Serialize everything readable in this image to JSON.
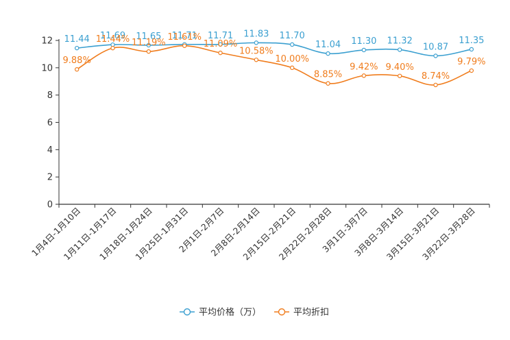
{
  "chart_data": {
    "type": "line",
    "title": "",
    "xlabel": "",
    "ylabel": "",
    "ylim": [
      0,
      12
    ],
    "yticks": [
      0,
      2,
      4,
      6,
      8,
      10,
      12
    ],
    "categories": [
      "1月4日-1月10日",
      "1月11日-1月17日",
      "1月18日-1月24日",
      "1月25日-1月31日",
      "2月1日-2月7日",
      "2月8日-2月14日",
      "2月15日-2月21日",
      "2月22日-2月28日",
      "3月1日-3月7日",
      "3月8日-3月14日",
      "3月15日-3月21日",
      "3月22日-3月28日"
    ],
    "series": [
      {
        "name": "平均价格（万）",
        "color": "#3a9fd0",
        "values": [
          11.44,
          11.69,
          11.65,
          11.71,
          11.71,
          11.83,
          11.7,
          11.04,
          11.3,
          11.32,
          10.87,
          11.35
        ],
        "labels": [
          "11.44",
          "11.69",
          "11.65",
          "11.71",
          "11.71",
          "11.83",
          "11.70",
          "11.04",
          "11.30",
          "11.32",
          "10.87",
          "11.35"
        ]
      },
      {
        "name": "平均折扣",
        "color": "#f07c1c",
        "values": [
          9.88,
          11.44,
          11.19,
          11.61,
          11.09,
          10.58,
          10.0,
          8.85,
          9.42,
          9.4,
          8.74,
          9.79
        ],
        "labels": [
          "9.88%",
          "11.44%",
          "11.19%",
          "11.61%",
          "11.09%",
          "10.58%",
          "10.00%",
          "8.85%",
          "9.42%",
          "9.40%",
          "8.74%",
          "9.79%"
        ]
      }
    ],
    "legend_position": "bottom-center"
  }
}
